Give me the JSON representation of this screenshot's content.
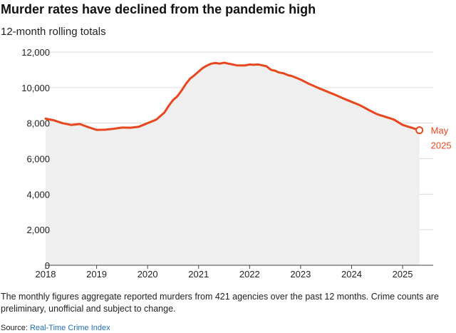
{
  "header": {
    "title": "Murder rates have declined from the pandemic high",
    "subtitle": "12-month rolling totals"
  },
  "footer": {
    "note": "The monthly figures aggregate reported murders from 421 agencies over the past 12 months. Crime counts are preliminary, unofficial and subject to change.",
    "source_label": "Source: ",
    "source_name": "Real-Time Crime Index"
  },
  "colors": {
    "line": "#e8461e",
    "area": "#efefef",
    "grid": "#d9d9d9"
  },
  "chart_data": {
    "type": "area",
    "title": "Murder rates have declined from the pandemic high",
    "subtitle": "12-month rolling totals",
    "x_tick_labels": [
      "2018",
      "2019",
      "2020",
      "2021",
      "2022",
      "2023",
      "2024",
      "2025"
    ],
    "y_tick_labels": [
      "0",
      "2,000",
      "4,000",
      "6,000",
      "8,000",
      "10,000",
      "12,000"
    ],
    "ylim": [
      0,
      12000
    ],
    "grid": true,
    "end_annotation": {
      "month": "May",
      "year": "2025",
      "value": 7600
    },
    "series": [
      {
        "x": [
          2018.0,
          2018.17,
          2018.33,
          2018.5,
          2018.67,
          2018.83,
          2019.0,
          2019.17,
          2019.33,
          2019.5,
          2019.67,
          2019.83,
          2020.0,
          2020.17,
          2020.33,
          2020.42,
          2020.5,
          2020.58,
          2020.67,
          2020.75,
          2020.83,
          2020.92,
          2021.0,
          2021.08,
          2021.17,
          2021.25,
          2021.33,
          2021.42,
          2021.5,
          2021.58,
          2021.67,
          2021.75,
          2021.83,
          2021.92,
          2022.0,
          2022.08,
          2022.17,
          2022.25,
          2022.33,
          2022.42,
          2022.5,
          2022.58,
          2022.67,
          2022.75,
          2022.83,
          2023.0,
          2023.17,
          2023.33,
          2023.5,
          2023.67,
          2023.83,
          2024.0,
          2024.17,
          2024.33,
          2024.5,
          2024.67,
          2024.83,
          2025.0,
          2025.17,
          2025.33
        ],
        "y": [
          8250,
          8150,
          8000,
          7900,
          7950,
          7780,
          7620,
          7630,
          7680,
          7750,
          7740,
          7800,
          8000,
          8200,
          8600,
          9000,
          9300,
          9500,
          9850,
          10200,
          10500,
          10700,
          10900,
          11100,
          11250,
          11350,
          11380,
          11350,
          11400,
          11350,
          11300,
          11250,
          11250,
          11250,
          11300,
          11280,
          11300,
          11250,
          11200,
          11000,
          10950,
          10850,
          10800,
          10700,
          10650,
          10450,
          10200,
          10000,
          9800,
          9600,
          9400,
          9200,
          9000,
          8750,
          8500,
          8350,
          8200,
          7900,
          7750,
          7600
        ]
      }
    ]
  }
}
